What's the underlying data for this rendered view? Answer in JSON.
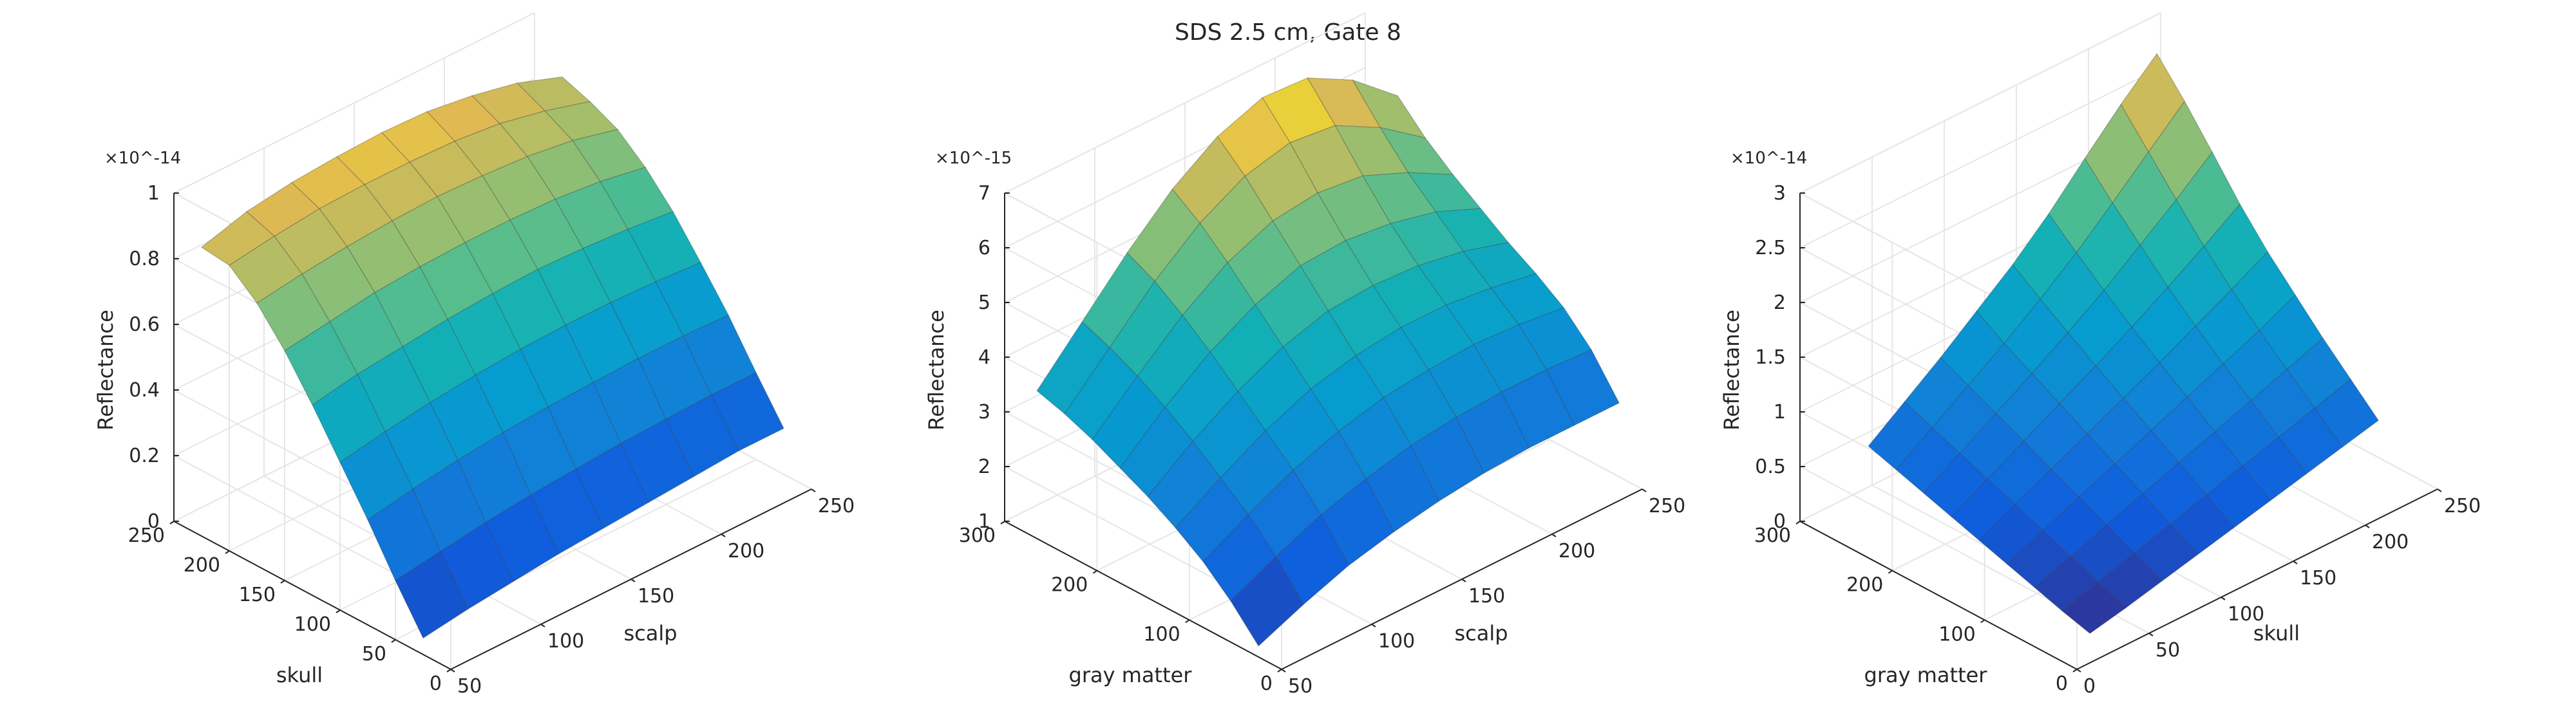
{
  "figure_title": "SDS 2.5 cm, Gate 8",
  "chart_data": [
    {
      "type": "surface",
      "zlabel": "Reflectance",
      "zlim": [
        0,
        1
      ],
      "z_exponent": "×10^-14",
      "ztick_labels": [
        "0",
        "0.2",
        "0.4",
        "0.6",
        "0.8",
        "1"
      ],
      "ztick_values": [
        0,
        0.2,
        0.4,
        0.6,
        0.8,
        1
      ],
      "xlabel": "scalp",
      "xlim": [
        50,
        250
      ],
      "xtick_labels": [
        "50",
        "100",
        "150",
        "200",
        "250"
      ],
      "ylabel": "skull",
      "ylim": [
        0,
        250
      ],
      "ytick_labels": [
        "0",
        "50",
        "100",
        "150",
        "200",
        "250"
      ],
      "x": [
        50,
        75,
        100,
        125,
        150,
        175,
        200,
        225,
        250
      ],
      "y": [
        25,
        50,
        75,
        100,
        125,
        150,
        175,
        200,
        225
      ],
      "z": [
        [
          0.05,
          0.07,
          0.085,
          0.1,
          0.11,
          0.12,
          0.13,
          0.14,
          0.14
        ],
        [
          0.18,
          0.2,
          0.22,
          0.235,
          0.245,
          0.255,
          0.26,
          0.265,
          0.265
        ],
        [
          0.32,
          0.345,
          0.365,
          0.38,
          0.39,
          0.395,
          0.4,
          0.4,
          0.395
        ],
        [
          0.45,
          0.475,
          0.495,
          0.51,
          0.52,
          0.525,
          0.525,
          0.52,
          0.51
        ],
        [
          0.58,
          0.605,
          0.62,
          0.635,
          0.645,
          0.65,
          0.645,
          0.635,
          0.62
        ],
        [
          0.7,
          0.72,
          0.74,
          0.75,
          0.755,
          0.755,
          0.75,
          0.735,
          0.71
        ],
        [
          0.8,
          0.82,
          0.835,
          0.845,
          0.85,
          0.845,
          0.835,
          0.815,
          0.78
        ],
        [
          0.87,
          0.89,
          0.905,
          0.91,
          0.91,
          0.905,
          0.89,
          0.86,
          0.82
        ],
        [
          0.88,
          0.92,
          0.94,
          0.95,
          0.955,
          0.95,
          0.93,
          0.9,
          0.85
        ]
      ]
    },
    {
      "type": "surface",
      "zlabel": "Reflectance",
      "zlim": [
        1,
        7
      ],
      "z_exponent": "×10^-15",
      "ztick_labels": [
        "1",
        "2",
        "3",
        "4",
        "5",
        "6",
        "7"
      ],
      "ztick_values": [
        1,
        2,
        3,
        4,
        5,
        6,
        7
      ],
      "xlabel": "scalp",
      "xlim": [
        50,
        250
      ],
      "xtick_labels": [
        "50",
        "100",
        "150",
        "200",
        "250"
      ],
      "ylabel": "gray matter",
      "ylim": [
        0,
        300
      ],
      "ytick_labels": [
        "0",
        "100",
        "200",
        "300"
      ],
      "x": [
        50,
        75,
        100,
        125,
        150,
        175,
        200,
        225,
        250
      ],
      "y": [
        25,
        55,
        85,
        115,
        145,
        175,
        205,
        235,
        265
      ],
      "z": [
        [
          1.2,
          1.55,
          1.85,
          2.05,
          2.2,
          2.3,
          2.35,
          2.35,
          2.35
        ],
        [
          1.75,
          2.15,
          2.5,
          2.75,
          2.95,
          3.05,
          3.1,
          3.1,
          3.05
        ],
        [
          2.2,
          2.65,
          3.05,
          3.35,
          3.55,
          3.65,
          3.7,
          3.65,
          3.55
        ],
        [
          2.55,
          3.05,
          3.5,
          3.85,
          4.05,
          4.15,
          4.15,
          4.05,
          3.9
        ],
        [
          2.85,
          3.45,
          3.95,
          4.35,
          4.6,
          4.65,
          4.6,
          4.45,
          4.2
        ],
        [
          3.1,
          3.8,
          4.4,
          4.85,
          5.15,
          5.2,
          5.1,
          4.9,
          4.55
        ],
        [
          3.35,
          4.1,
          4.8,
          5.35,
          5.7,
          5.8,
          5.7,
          5.35,
          4.9
        ],
        [
          3.55,
          4.35,
          5.15,
          5.8,
          6.25,
          6.45,
          6.35,
          5.9,
          5.3
        ],
        [
          3.7,
          4.55,
          5.4,
          6.15,
          6.7,
          7.0,
          6.95,
          6.5,
          5.8
        ]
      ]
    },
    {
      "type": "surface",
      "zlabel": "Reflectance",
      "zlim": [
        0,
        3
      ],
      "z_exponent": "×10^-14",
      "ztick_labels": [
        "0",
        "0.5",
        "1",
        "1.5",
        "2",
        "2.5",
        "3"
      ],
      "ztick_values": [
        0,
        0.5,
        1,
        1.5,
        2,
        2.5,
        3
      ],
      "xlabel": "skull",
      "xlim": [
        0,
        250
      ],
      "xtick_labels": [
        "0",
        "50",
        "100",
        "150",
        "200",
        "250"
      ],
      "ylabel": "gray matter",
      "ylim": [
        0,
        300
      ],
      "ytick_labels": [
        "0",
        "100",
        "200",
        "300"
      ],
      "x": [
        25,
        50,
        75,
        100,
        125,
        150,
        175,
        200,
        225
      ],
      "y": [
        25,
        55,
        85,
        115,
        145,
        175,
        205,
        235,
        265
      ],
      "z": [
        [
          0.05,
          0.12,
          0.2,
          0.28,
          0.36,
          0.44,
          0.52,
          0.6,
          0.68
        ],
        [
          0.12,
          0.22,
          0.32,
          0.42,
          0.52,
          0.62,
          0.72,
          0.82,
          0.92
        ],
        [
          0.2,
          0.32,
          0.44,
          0.56,
          0.68,
          0.8,
          0.92,
          1.04,
          1.16
        ],
        [
          0.28,
          0.42,
          0.56,
          0.7,
          0.84,
          0.98,
          1.12,
          1.26,
          1.42
        ],
        [
          0.36,
          0.52,
          0.68,
          0.84,
          1.0,
          1.16,
          1.33,
          1.5,
          1.68
        ],
        [
          0.44,
          0.62,
          0.8,
          0.98,
          1.16,
          1.35,
          1.55,
          1.76,
          1.98
        ],
        [
          0.52,
          0.72,
          0.92,
          1.12,
          1.33,
          1.55,
          1.8,
          2.05,
          2.32
        ],
        [
          0.6,
          0.82,
          1.04,
          1.26,
          1.5,
          1.76,
          2.05,
          2.35,
          2.65
        ],
        [
          0.68,
          0.92,
          1.16,
          1.42,
          1.68,
          1.98,
          2.32,
          2.65,
          2.95
        ]
      ]
    }
  ]
}
